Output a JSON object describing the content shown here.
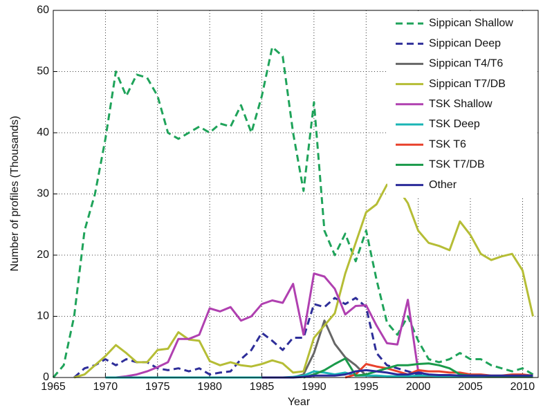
{
  "chart_data": {
    "type": "line",
    "x_label": "Year",
    "y_label": "Number of profiles (Thousands)",
    "x": [
      1965,
      1966,
      1967,
      1968,
      1969,
      1970,
      1971,
      1972,
      1973,
      1974,
      1975,
      1976,
      1977,
      1978,
      1979,
      1980,
      1981,
      1982,
      1983,
      1984,
      1985,
      1986,
      1987,
      1988,
      1989,
      1990,
      1991,
      1992,
      1993,
      1994,
      1995,
      1996,
      1997,
      1998,
      1999,
      2000,
      2001,
      2002,
      2003,
      2004,
      2005,
      2006,
      2007,
      2008,
      2009,
      2010,
      2011
    ],
    "xlim": [
      1965,
      2011.5
    ],
    "xticks": [
      1965,
      1970,
      1975,
      1980,
      1985,
      1990,
      1995,
      2000,
      2005,
      2010
    ],
    "ylim": [
      0,
      60
    ],
    "yticks": [
      0,
      10,
      20,
      30,
      40,
      50,
      60
    ],
    "grid": true,
    "legend": "upper right",
    "series": [
      {
        "name": "Sippican Shallow",
        "color": "#1fa35a",
        "style": "dashed",
        "values": [
          0,
          2,
          10,
          24,
          30,
          39,
          50,
          46,
          49.5,
          49,
          46,
          40,
          39,
          40,
          41,
          40,
          41.5,
          41,
          44.5,
          40,
          46,
          54,
          52.5,
          40,
          30.5,
          45,
          24,
          20,
          23.5,
          19,
          24,
          16,
          9,
          7,
          10,
          6,
          3,
          2.5,
          3,
          4,
          3,
          3,
          2,
          1.5,
          1,
          1.5,
          0.5
        ]
      },
      {
        "name": "Sippican Deep",
        "color": "#2e2e99",
        "style": "dashed",
        "values": [
          null,
          null,
          0,
          1.5,
          2,
          3,
          2,
          3,
          2.5,
          2.5,
          1.5,
          1.2,
          1.5,
          1,
          1.5,
          0.5,
          0.8,
          1,
          3,
          4.5,
          7.3,
          6,
          4.5,
          6.5,
          6.5,
          12,
          11.5,
          13,
          12,
          13,
          11.5,
          4,
          2,
          1.5,
          1,
          0.5,
          0.3,
          0.3,
          0.3,
          0.3,
          0.3,
          0.3,
          0.2,
          0.2,
          0.2,
          0.2,
          0.2
        ]
      },
      {
        "name": "Sippican T4/T6",
        "color": "#666666",
        "style": "solid",
        "values": [
          null,
          null,
          null,
          null,
          null,
          null,
          null,
          null,
          null,
          null,
          null,
          null,
          null,
          null,
          null,
          null,
          null,
          null,
          null,
          null,
          null,
          null,
          null,
          0,
          0.5,
          4,
          9.3,
          5.5,
          3.3,
          2,
          0.3,
          0.2,
          0.1,
          0.1,
          0.1,
          0.1,
          0.1,
          0.1,
          0.1,
          0.1,
          0.1,
          0.1,
          0.1,
          0.1,
          0.1,
          0.1,
          0.1
        ]
      },
      {
        "name": "Sippican T7/DB",
        "color": "#b5bd35",
        "style": "solid",
        "values": [
          null,
          null,
          0,
          0.5,
          2,
          3.5,
          5.3,
          4,
          2.5,
          2.5,
          4.5,
          4.7,
          7.4,
          6.2,
          6,
          2.7,
          2,
          2.5,
          2,
          1.8,
          2.2,
          2.8,
          2.3,
          0.8,
          1,
          6.5,
          8.5,
          10.5,
          17,
          22,
          27,
          28.3,
          31.5,
          31,
          28.5,
          24,
          22,
          21.5,
          20.8,
          25.5,
          23.3,
          20.2,
          19.2,
          19.8,
          20.2,
          17.5,
          10
        ]
      },
      {
        "name": "TSK Shallow",
        "color": "#b040b0",
        "style": "solid",
        "values": [
          null,
          null,
          null,
          null,
          null,
          0,
          0,
          0.2,
          0.5,
          1,
          1.7,
          2.5,
          6.3,
          6.3,
          7,
          11.3,
          10.8,
          11.5,
          9.3,
          10,
          12,
          12.6,
          12.2,
          15.3,
          7,
          17,
          16.5,
          14.5,
          10.3,
          11.7,
          11.8,
          8.5,
          5.6,
          5.4,
          12.7,
          1,
          0.3,
          0.2,
          0.2,
          0.2,
          0.2,
          0.2,
          0.2,
          0.2,
          0.2,
          0.2,
          0.2
        ]
      },
      {
        "name": "TSK Deep",
        "color": "#1ab5b5",
        "style": "solid",
        "values": [
          null,
          null,
          null,
          null,
          null,
          0,
          0,
          0,
          0,
          0,
          0,
          0,
          0,
          0,
          0,
          0,
          0,
          0,
          0,
          0,
          0,
          0,
          0,
          0.1,
          0.3,
          1,
          0.8,
          0.5,
          0.8,
          0.3,
          0.3,
          0.3,
          0.2,
          0.2,
          0.2,
          0.3,
          0.3,
          0.2,
          0.2,
          0.2,
          0.2,
          0.2,
          0.2,
          0.2,
          0.2,
          0.2,
          0.2
        ]
      },
      {
        "name": "TSK T6",
        "color": "#e8412c",
        "style": "solid",
        "values": [
          null,
          null,
          null,
          null,
          null,
          null,
          null,
          null,
          null,
          null,
          null,
          null,
          null,
          null,
          null,
          null,
          null,
          null,
          null,
          null,
          null,
          null,
          null,
          null,
          null,
          null,
          null,
          null,
          0,
          0.5,
          2.2,
          1.8,
          1.5,
          1,
          0.5,
          1.2,
          1,
          1,
          0.8,
          0.8,
          0.5,
          0.5,
          0.3,
          0.3,
          0.5,
          0.5,
          0.3
        ]
      },
      {
        "name": "TSK T7/DB",
        "color": "#1a9a4a",
        "style": "solid",
        "values": [
          null,
          null,
          null,
          null,
          null,
          null,
          null,
          null,
          null,
          null,
          null,
          null,
          null,
          null,
          null,
          null,
          null,
          null,
          null,
          null,
          null,
          null,
          null,
          null,
          0,
          0.5,
          1.2,
          2.2,
          3.1,
          0.3,
          0.5,
          1,
          1.5,
          2,
          2,
          2.2,
          2.3,
          2,
          1.5,
          0.5,
          0.3,
          0.3,
          0.2,
          0.2,
          0.2,
          0.2,
          0.2
        ]
      },
      {
        "name": "Other",
        "color": "#2a2a9a",
        "style": "solid",
        "values": [
          null,
          null,
          null,
          null,
          null,
          null,
          null,
          null,
          null,
          null,
          null,
          null,
          null,
          null,
          null,
          null,
          null,
          null,
          null,
          null,
          0,
          0,
          0,
          0,
          0.1,
          0.3,
          0.3,
          0.3,
          0.5,
          1,
          1.2,
          1,
          0.8,
          0.5,
          0.5,
          0.8,
          0.5,
          0.4,
          0.4,
          0.3,
          0.3,
          0.3,
          0.3,
          0.3,
          0.3,
          0.3,
          0.3
        ]
      }
    ]
  }
}
